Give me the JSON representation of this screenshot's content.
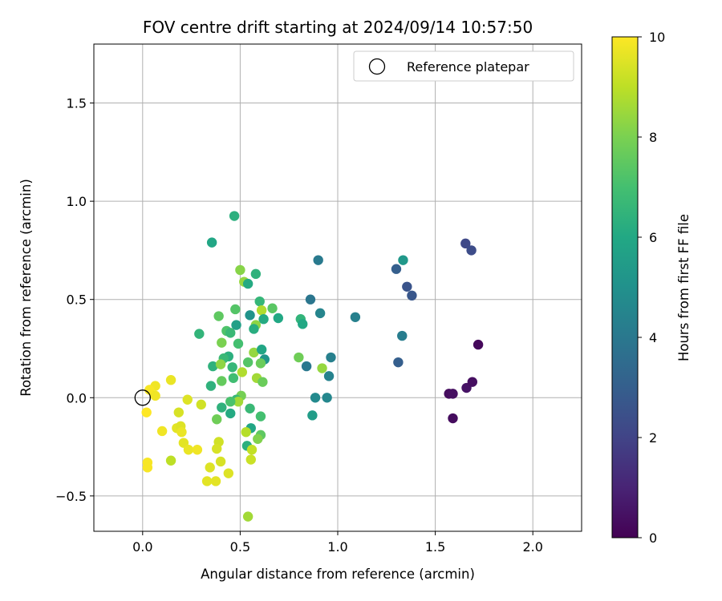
{
  "chart_data": {
    "type": "scatter",
    "title": "FOV centre drift starting at 2024/09/14 10:57:50",
    "xlabel": "Angular distance from reference (arcmin)",
    "ylabel": "Rotation from reference (arcmin)",
    "xlim": [
      -0.25,
      2.25
    ],
    "ylim": [
      -0.68,
      1.8
    ],
    "xticks": [
      0.0,
      0.5,
      1.0,
      1.5,
      2.0
    ],
    "xtick_labels": [
      "0.0",
      "0.5",
      "1.0",
      "1.5",
      "2.0"
    ],
    "yticks": [
      -0.5,
      0.0,
      0.5,
      1.0,
      1.5
    ],
    "ytick_labels": [
      "−0.5",
      "0.0",
      "0.5",
      "1.0",
      "1.5"
    ],
    "grid": true,
    "legend": {
      "position": "top-right",
      "entries": [
        "Reference platepar"
      ]
    },
    "reference_point": {
      "x": 0.0,
      "y": 0.0
    },
    "colorbar": {
      "label": "Hours from first FF file",
      "colormap": "viridis",
      "range": [
        0,
        10
      ],
      "ticks": [
        0,
        2,
        4,
        6,
        8,
        10
      ],
      "tick_labels": [
        "0",
        "2",
        "4",
        "6",
        "8",
        "10"
      ]
    },
    "points": [
      {
        "x": 1.57,
        "y": 0.02,
        "c": 0.3
      },
      {
        "x": 1.59,
        "y": 0.02,
        "c": 0.4
      },
      {
        "x": 1.59,
        "y": -0.105,
        "c": 0.3
      },
      {
        "x": 1.66,
        "y": 0.05,
        "c": 0.5
      },
      {
        "x": 1.69,
        "y": 0.08,
        "c": 0.4
      },
      {
        "x": 1.72,
        "y": 0.27,
        "c": 0.2
      },
      {
        "x": 1.655,
        "y": 0.785,
        "c": 2.2
      },
      {
        "x": 1.685,
        "y": 0.75,
        "c": 2.3
      },
      {
        "x": 1.355,
        "y": 0.565,
        "c": 2.6
      },
      {
        "x": 1.38,
        "y": 0.52,
        "c": 2.7
      },
      {
        "x": 1.3,
        "y": 0.655,
        "c": 3.0
      },
      {
        "x": 1.31,
        "y": 0.18,
        "c": 3.0
      },
      {
        "x": 1.33,
        "y": 0.315,
        "c": 4.2
      },
      {
        "x": 1.335,
        "y": 0.7,
        "c": 5.3
      },
      {
        "x": 1.09,
        "y": 0.41,
        "c": 4.3
      },
      {
        "x": 0.86,
        "y": 0.5,
        "c": 3.9
      },
      {
        "x": 0.9,
        "y": 0.7,
        "c": 4.1
      },
      {
        "x": 0.91,
        "y": 0.43,
        "c": 4.5
      },
      {
        "x": 0.965,
        "y": 0.205,
        "c": 4.3
      },
      {
        "x": 0.955,
        "y": 0.11,
        "c": 4.4
      },
      {
        "x": 0.945,
        "y": 0.0,
        "c": 4.6
      },
      {
        "x": 0.885,
        "y": 0.0,
        "c": 4.7
      },
      {
        "x": 0.87,
        "y": -0.09,
        "c": 5.5
      },
      {
        "x": 0.84,
        "y": 0.16,
        "c": 4.0
      },
      {
        "x": 0.81,
        "y": 0.4,
        "c": 6.5
      },
      {
        "x": 0.82,
        "y": 0.375,
        "c": 6.0
      },
      {
        "x": 0.8,
        "y": 0.205,
        "c": 7.8
      },
      {
        "x": 0.92,
        "y": 0.15,
        "c": 8.4
      },
      {
        "x": 0.695,
        "y": 0.405,
        "c": 6.0
      },
      {
        "x": 0.665,
        "y": 0.455,
        "c": 7.4
      },
      {
        "x": 0.47,
        "y": 0.925,
        "c": 6.3
      },
      {
        "x": 0.355,
        "y": 0.79,
        "c": 5.9
      },
      {
        "x": 0.5,
        "y": 0.65,
        "c": 8.2
      },
      {
        "x": 0.52,
        "y": 0.59,
        "c": 8.4
      },
      {
        "x": 0.54,
        "y": 0.58,
        "c": 6.1
      },
      {
        "x": 0.58,
        "y": 0.63,
        "c": 6.4
      },
      {
        "x": 0.6,
        "y": 0.49,
        "c": 6.6
      },
      {
        "x": 0.61,
        "y": 0.445,
        "c": 8.8
      },
      {
        "x": 0.62,
        "y": 0.4,
        "c": 6.1
      },
      {
        "x": 0.55,
        "y": 0.42,
        "c": 5.1
      },
      {
        "x": 0.58,
        "y": 0.37,
        "c": 8.3
      },
      {
        "x": 0.57,
        "y": 0.35,
        "c": 6.2
      },
      {
        "x": 0.48,
        "y": 0.37,
        "c": 5.6
      },
      {
        "x": 0.475,
        "y": 0.45,
        "c": 7.3
      },
      {
        "x": 0.39,
        "y": 0.415,
        "c": 7.5
      },
      {
        "x": 0.43,
        "y": 0.34,
        "c": 7.2
      },
      {
        "x": 0.45,
        "y": 0.33,
        "c": 6.7
      },
      {
        "x": 0.29,
        "y": 0.325,
        "c": 6.5
      },
      {
        "x": 0.405,
        "y": 0.28,
        "c": 8.0
      },
      {
        "x": 0.49,
        "y": 0.275,
        "c": 7.0
      },
      {
        "x": 0.44,
        "y": 0.21,
        "c": 6.3
      },
      {
        "x": 0.415,
        "y": 0.2,
        "c": 6.7
      },
      {
        "x": 0.36,
        "y": 0.16,
        "c": 6.4
      },
      {
        "x": 0.4,
        "y": 0.17,
        "c": 8.3
      },
      {
        "x": 0.46,
        "y": 0.155,
        "c": 6.6
      },
      {
        "x": 0.54,
        "y": 0.18,
        "c": 7.3
      },
      {
        "x": 0.57,
        "y": 0.23,
        "c": 8.4
      },
      {
        "x": 0.61,
        "y": 0.245,
        "c": 5.9
      },
      {
        "x": 0.625,
        "y": 0.195,
        "c": 5.2
      },
      {
        "x": 0.605,
        "y": 0.175,
        "c": 7.7
      },
      {
        "x": 0.51,
        "y": 0.13,
        "c": 8.8
      },
      {
        "x": 0.465,
        "y": 0.1,
        "c": 6.9
      },
      {
        "x": 0.405,
        "y": 0.085,
        "c": 7.6
      },
      {
        "x": 0.585,
        "y": 0.1,
        "c": 8.6
      },
      {
        "x": 0.615,
        "y": 0.08,
        "c": 7.7
      },
      {
        "x": 0.35,
        "y": 0.06,
        "c": 6.4
      },
      {
        "x": 0.505,
        "y": 0.01,
        "c": 7.9
      },
      {
        "x": 0.48,
        "y": -0.01,
        "c": 6.7
      },
      {
        "x": 0.49,
        "y": -0.02,
        "c": 8.6
      },
      {
        "x": 0.45,
        "y": -0.02,
        "c": 7.1
      },
      {
        "x": 0.405,
        "y": -0.05,
        "c": 6.4
      },
      {
        "x": 0.45,
        "y": -0.08,
        "c": 6.1
      },
      {
        "x": 0.55,
        "y": -0.055,
        "c": 6.7
      },
      {
        "x": 0.605,
        "y": -0.095,
        "c": 7.0
      },
      {
        "x": 0.38,
        "y": -0.11,
        "c": 7.8
      },
      {
        "x": 0.555,
        "y": -0.155,
        "c": 5.9
      },
      {
        "x": 0.605,
        "y": -0.19,
        "c": 7.5
      },
      {
        "x": 0.59,
        "y": -0.21,
        "c": 8.1
      },
      {
        "x": 0.53,
        "y": -0.175,
        "c": 8.9
      },
      {
        "x": 0.535,
        "y": -0.245,
        "c": 6.3
      },
      {
        "x": 0.56,
        "y": -0.265,
        "c": 9.1
      },
      {
        "x": 0.555,
        "y": -0.315,
        "c": 9.2
      },
      {
        "x": 0.54,
        "y": -0.605,
        "c": 8.6
      },
      {
        "x": 0.39,
        "y": -0.225,
        "c": 9.3
      },
      {
        "x": 0.38,
        "y": -0.26,
        "c": 9.4
      },
      {
        "x": 0.4,
        "y": -0.325,
        "c": 9.4
      },
      {
        "x": 0.44,
        "y": -0.385,
        "c": 9.5
      },
      {
        "x": 0.345,
        "y": -0.355,
        "c": 9.5
      },
      {
        "x": 0.33,
        "y": -0.425,
        "c": 9.6
      },
      {
        "x": 0.375,
        "y": -0.425,
        "c": 9.6
      },
      {
        "x": 0.3,
        "y": -0.035,
        "c": 9.3
      },
      {
        "x": 0.23,
        "y": -0.01,
        "c": 9.5
      },
      {
        "x": 0.185,
        "y": -0.075,
        "c": 9.4
      },
      {
        "x": 0.175,
        "y": -0.155,
        "c": 9.6
      },
      {
        "x": 0.195,
        "y": -0.145,
        "c": 9.5
      },
      {
        "x": 0.2,
        "y": -0.175,
        "c": 9.7
      },
      {
        "x": 0.1,
        "y": -0.17,
        "c": 9.8
      },
      {
        "x": 0.21,
        "y": -0.23,
        "c": 9.6
      },
      {
        "x": 0.235,
        "y": -0.265,
        "c": 9.7
      },
      {
        "x": 0.28,
        "y": -0.265,
        "c": 9.8
      },
      {
        "x": 0.145,
        "y": -0.32,
        "c": 9.0
      },
      {
        "x": 0.025,
        "y": -0.33,
        "c": 9.9
      },
      {
        "x": 0.025,
        "y": -0.355,
        "c": 9.9
      },
      {
        "x": 0.145,
        "y": 0.09,
        "c": 9.7
      },
      {
        "x": 0.065,
        "y": 0.06,
        "c": 9.8
      },
      {
        "x": 0.035,
        "y": 0.04,
        "c": 9.9
      },
      {
        "x": 0.065,
        "y": 0.01,
        "c": 9.8
      },
      {
        "x": 0.02,
        "y": -0.075,
        "c": 10.0
      }
    ]
  }
}
